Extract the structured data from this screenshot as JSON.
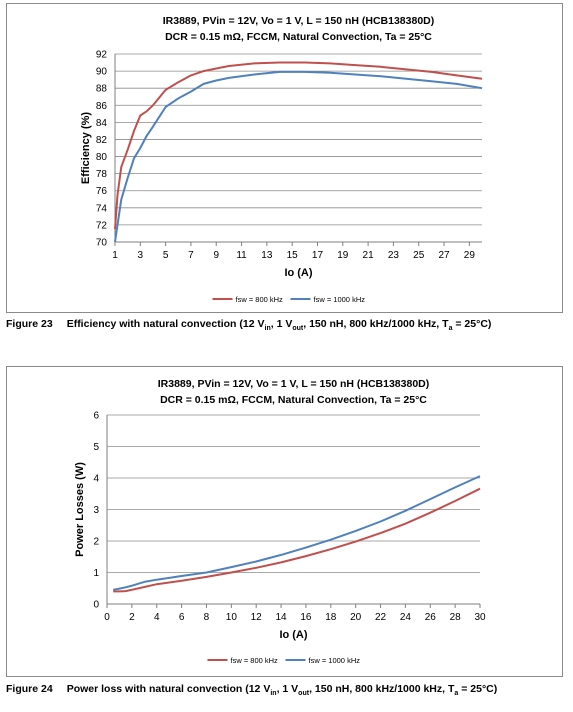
{
  "figures": [
    {
      "caption_number": "Figure 23",
      "caption": {
        "t1": "Efficiency with natural convection (12 V",
        "s1": "in",
        "t2": ", 1 V",
        "s2": "out",
        "t3": ", 150 nH, 800 kHz/1000 kHz, T",
        "s3": "a",
        "t4": " = 25°C)"
      }
    },
    {
      "caption_number": "Figure 24",
      "caption": {
        "t1": "Power loss with natural convection (12 V",
        "s1": "in",
        "t2": ", 1 V",
        "s2": "out",
        "t3": ", 150 nH, 800 kHz/1000 kHz, T",
        "s3": "a",
        "t4": " = 25°C)"
      }
    }
  ],
  "colors": {
    "series_800": "#c0504d",
    "series_1000": "#4f81bd",
    "grid": "#8c8c8c"
  },
  "chart_data": [
    {
      "type": "line",
      "title": [
        "IR3889, PVin = 12V, Vo = 1 V, L = 150 nH (HCB138380D)",
        "DCR = 0.15 mΩ, FCCM, Natural Convection, Ta = 25°C"
      ],
      "xlabel": "Io (A)",
      "ylabel": "Efficiency (%)",
      "xlim": [
        1,
        30
      ],
      "ylim": [
        70,
        92
      ],
      "xticks": [
        1,
        3,
        5,
        7,
        9,
        11,
        13,
        15,
        17,
        19,
        21,
        23,
        25,
        27,
        29
      ],
      "yticks": [
        70,
        72,
        74,
        76,
        78,
        80,
        82,
        84,
        86,
        88,
        90,
        92
      ],
      "grid": "horizontal",
      "legend": "bottom-center",
      "series": [
        {
          "name": "fsw = 800 kHz",
          "x": [
            1,
            1.2,
            1.5,
            2,
            2.5,
            3,
            3.5,
            4,
            5,
            6,
            7,
            8,
            9,
            10,
            12,
            14,
            16,
            18,
            20,
            22,
            24,
            26,
            28,
            30
          ],
          "y": [
            71.5,
            75.5,
            78.8,
            80.8,
            83.0,
            84.8,
            85.3,
            86.0,
            87.8,
            88.7,
            89.5,
            90.0,
            90.3,
            90.6,
            90.9,
            91.0,
            91.0,
            90.9,
            90.7,
            90.5,
            90.2,
            89.9,
            89.5,
            89.1
          ]
        },
        {
          "name": "fsw = 1000 kHz",
          "x": [
            1,
            1.2,
            1.5,
            2,
            2.5,
            3,
            3.5,
            4,
            5,
            6,
            7,
            8,
            9,
            10,
            12,
            14,
            16,
            18,
            20,
            22,
            24,
            26,
            28,
            30
          ],
          "y": [
            70.0,
            72.0,
            75.0,
            77.5,
            79.8,
            81.0,
            82.4,
            83.5,
            85.8,
            86.8,
            87.6,
            88.5,
            88.9,
            89.2,
            89.6,
            89.9,
            89.9,
            89.8,
            89.6,
            89.4,
            89.1,
            88.8,
            88.5,
            88.0
          ]
        }
      ]
    },
    {
      "type": "line",
      "title": [
        "IR3889, PVin = 12V, Vo = 1 V, L = 150 nH (HCB138380D)",
        "DCR = 0.15 mΩ, FCCM, Natural Convection, Ta = 25°C"
      ],
      "xlabel": "Io (A)",
      "ylabel": "Power Losses  (W)",
      "xlim": [
        0,
        30
      ],
      "ylim": [
        0,
        6
      ],
      "xticks": [
        0,
        2,
        4,
        6,
        8,
        10,
        12,
        14,
        16,
        18,
        20,
        22,
        24,
        26,
        28,
        30
      ],
      "yticks": [
        0,
        1,
        2,
        3,
        4,
        5,
        6
      ],
      "grid": "horizontal",
      "legend": "bottom-center",
      "series": [
        {
          "name": "fsw = 800 kHz",
          "x": [
            0.5,
            1,
            1.5,
            2,
            3,
            4,
            6,
            8,
            10,
            12,
            14,
            16,
            18,
            20,
            22,
            24,
            26,
            28,
            30
          ],
          "y": [
            0.4,
            0.4,
            0.41,
            0.45,
            0.54,
            0.63,
            0.74,
            0.86,
            1.0,
            1.15,
            1.32,
            1.52,
            1.74,
            1.98,
            2.25,
            2.55,
            2.9,
            3.27,
            3.66
          ]
        },
        {
          "name": "fsw = 1000 kHz",
          "x": [
            0.5,
            1,
            1.5,
            2,
            3,
            4,
            6,
            8,
            10,
            12,
            14,
            16,
            18,
            20,
            22,
            24,
            26,
            28,
            30
          ],
          "y": [
            0.45,
            0.49,
            0.53,
            0.58,
            0.7,
            0.77,
            0.89,
            1.0,
            1.17,
            1.35,
            1.56,
            1.79,
            2.04,
            2.32,
            2.62,
            2.96,
            3.33,
            3.7,
            4.06
          ]
        }
      ]
    }
  ]
}
